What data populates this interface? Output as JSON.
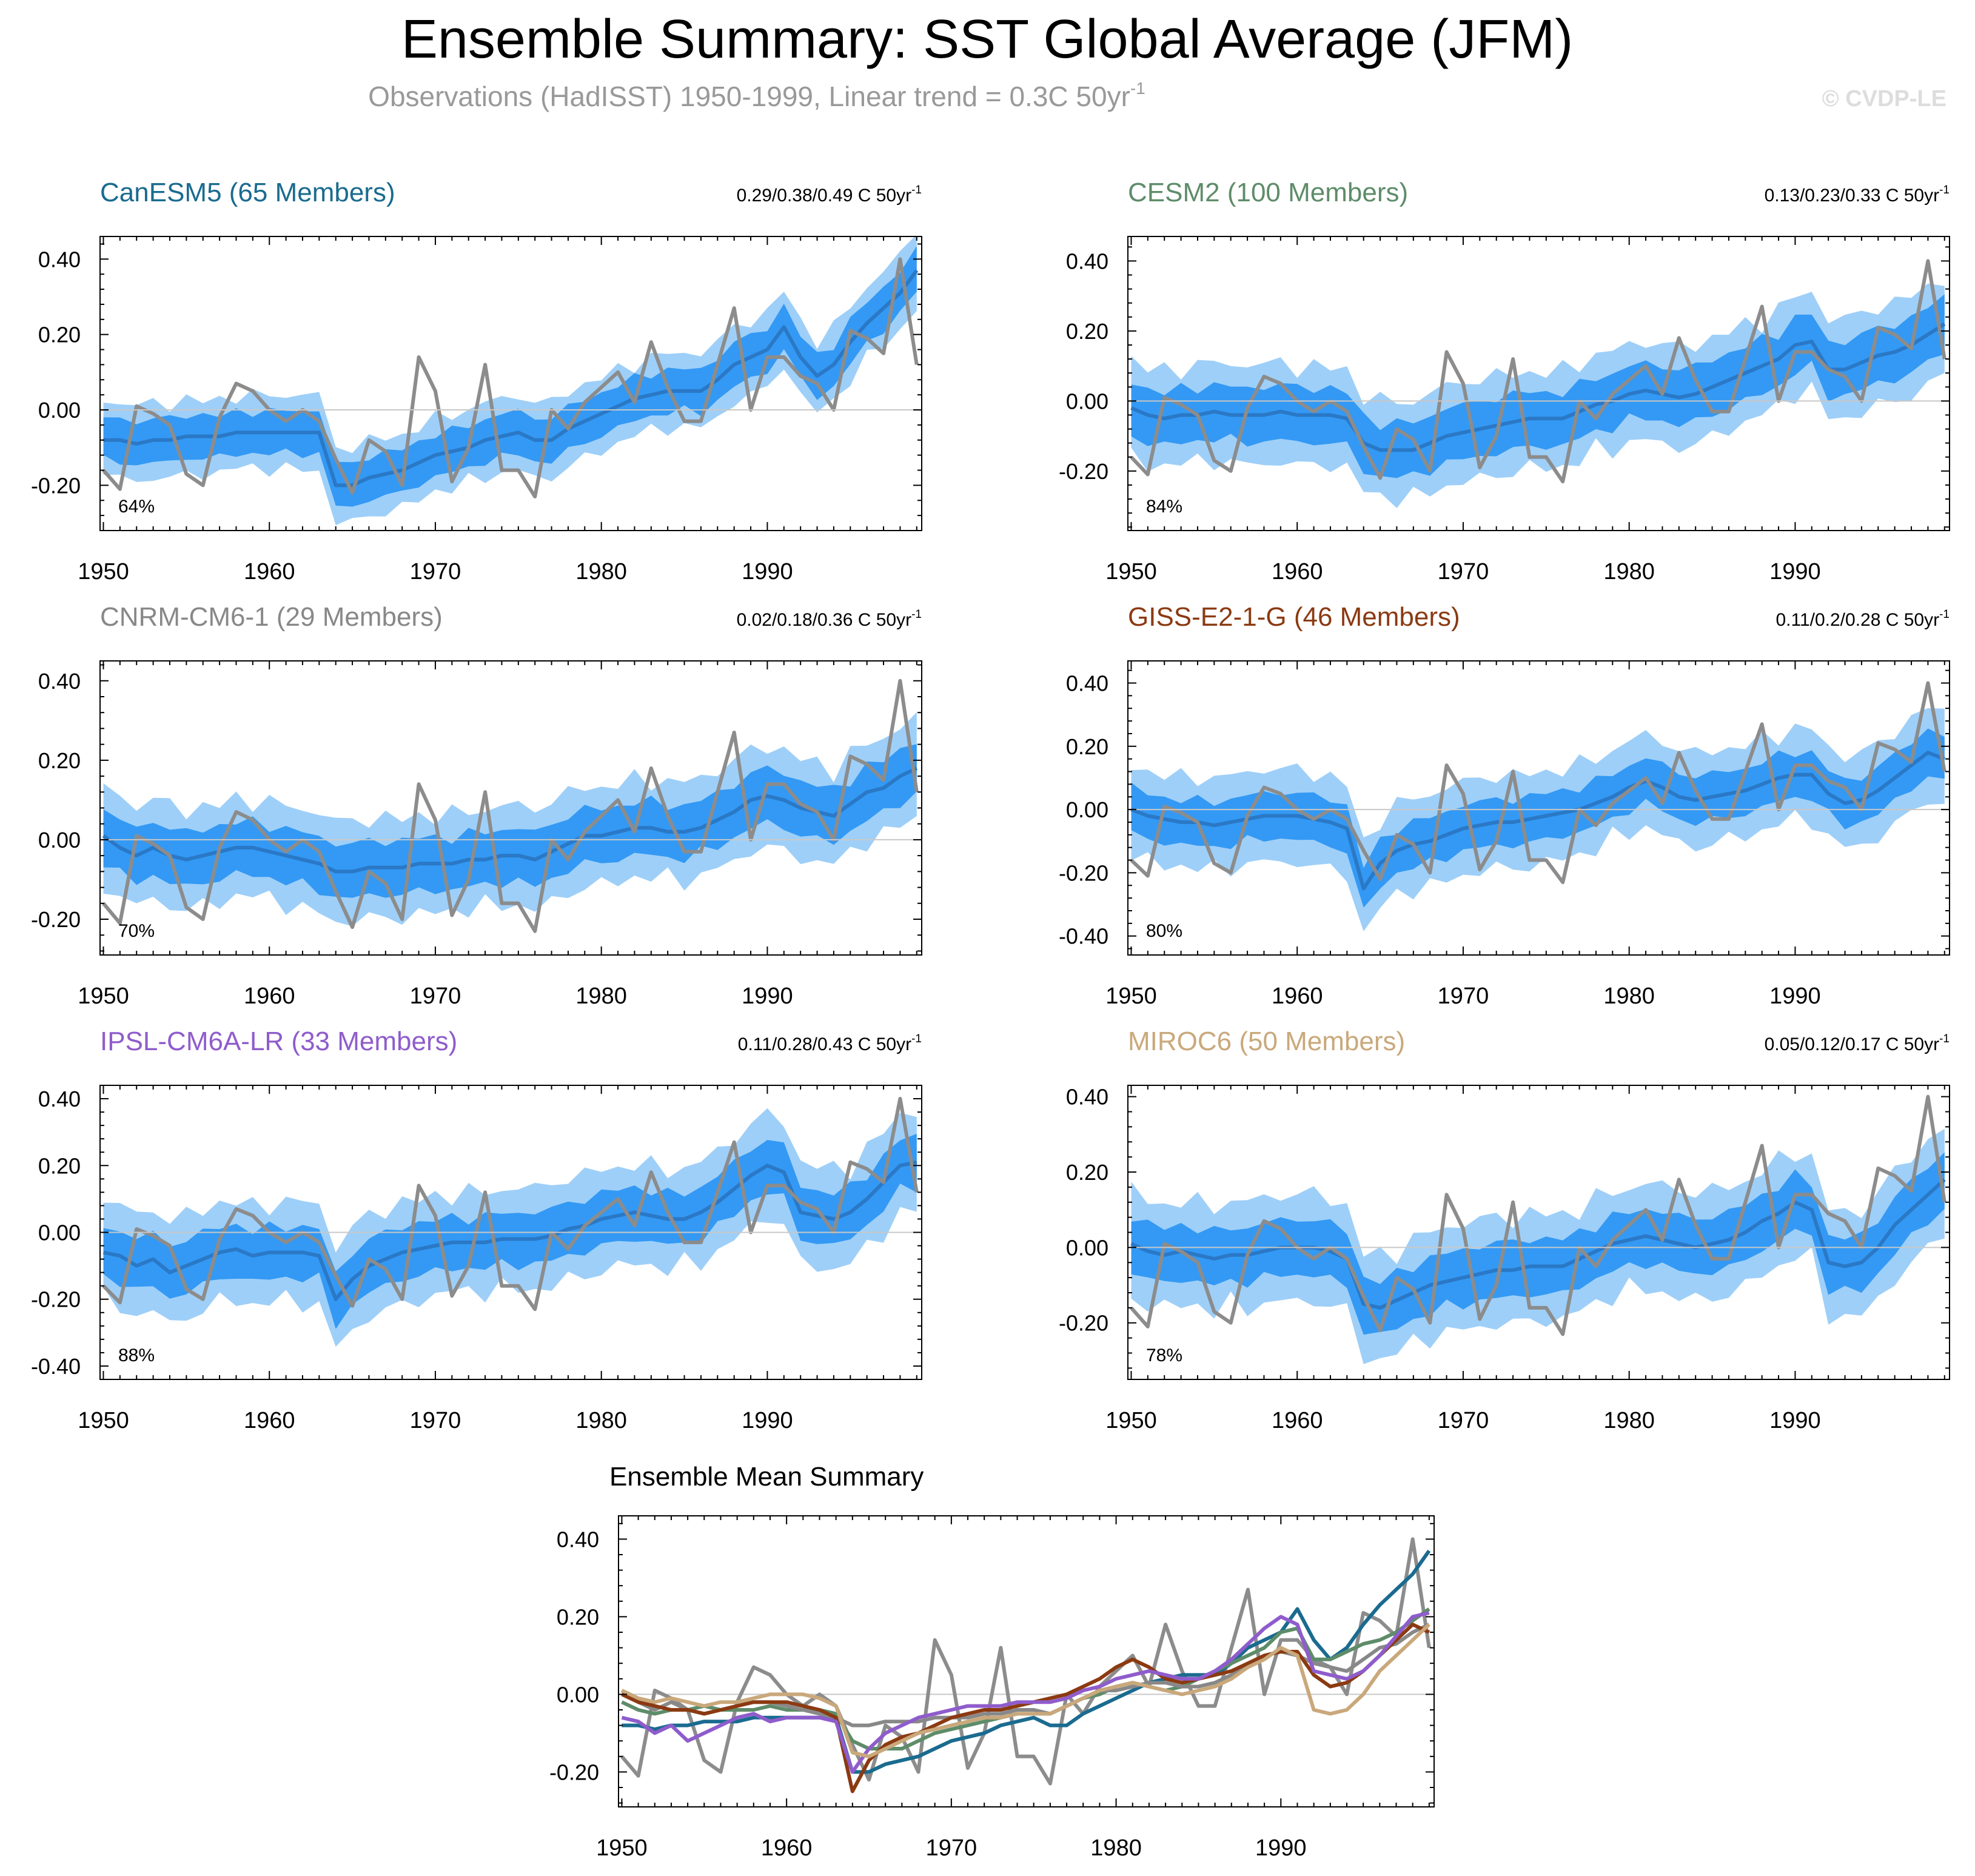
{
  "page": {
    "title": "Ensemble Summary: SST Global Average (JFM)",
    "subtitle_main": "Observations (HadISST) 1950-1999, Linear trend = 0.3C 50yr",
    "subtitle_exp": "-1",
    "watermark": "© CVDP-LE"
  },
  "colors": {
    "band_outer": "#9ecff8",
    "band_inner": "#3399f4",
    "ens_mean": "#2a78c6",
    "obs": "#8c8c8c",
    "zero_line": "#c8c8c8",
    "text_gray": "#999999"
  },
  "chart_data": {
    "type": "line",
    "x": [
      1950,
      1951,
      1952,
      1953,
      1954,
      1955,
      1956,
      1957,
      1958,
      1959,
      1960,
      1961,
      1962,
      1963,
      1964,
      1965,
      1966,
      1967,
      1968,
      1969,
      1970,
      1971,
      1972,
      1973,
      1974,
      1975,
      1976,
      1977,
      1978,
      1979,
      1980,
      1981,
      1982,
      1983,
      1984,
      1985,
      1986,
      1987,
      1988,
      1989,
      1990,
      1991,
      1992,
      1993,
      1994,
      1995,
      1996,
      1997,
      1998,
      1999
    ],
    "x_ticks": [
      1950,
      1960,
      1970,
      1980,
      1990
    ],
    "obs_name": "Observations (HadISST)",
    "obs": [
      -0.16,
      -0.21,
      0.01,
      -0.01,
      -0.04,
      -0.17,
      -0.2,
      -0.02,
      0.07,
      0.05,
      0.0,
      -0.03,
      0.0,
      -0.03,
      -0.13,
      -0.22,
      -0.08,
      -0.11,
      -0.2,
      0.14,
      0.05,
      -0.19,
      -0.1,
      0.12,
      -0.16,
      -0.16,
      -0.23,
      0.0,
      -0.05,
      0.02,
      0.06,
      0.1,
      0.02,
      0.18,
      0.06,
      -0.03,
      -0.03,
      0.12,
      0.27,
      0.0,
      0.14,
      0.14,
      0.09,
      0.07,
      0.0,
      0.21,
      0.19,
      0.15,
      0.4,
      0.12
    ],
    "panels": [
      {
        "model": "CanESM5 (65 Members)",
        "color": "#1a6b8f",
        "trend": "0.29/0.38/0.49 C 50yr",
        "pct": "64%",
        "ylim": [
          -0.32,
          0.46
        ],
        "yticks": [
          -0.2,
          0,
          0.2,
          0.4
        ],
        "mean": [
          -0.08,
          -0.08,
          -0.09,
          -0.08,
          -0.08,
          -0.07,
          -0.07,
          -0.07,
          -0.06,
          -0.06,
          -0.06,
          -0.06,
          -0.06,
          -0.06,
          -0.2,
          -0.2,
          -0.18,
          -0.17,
          -0.16,
          -0.14,
          -0.12,
          -0.11,
          -0.1,
          -0.08,
          -0.07,
          -0.06,
          -0.08,
          -0.08,
          -0.05,
          -0.03,
          -0.01,
          0.01,
          0.03,
          0.04,
          0.05,
          0.05,
          0.05,
          0.08,
          0.12,
          0.14,
          0.16,
          0.22,
          0.14,
          0.09,
          0.12,
          0.18,
          0.23,
          0.27,
          0.31,
          0.37
        ],
        "inner_spread": 0.055,
        "outer_spread": 0.095
      },
      {
        "model": "CESM2 (100 Members)",
        "color": "#5e8c69",
        "trend": "0.13/0.23/0.33 C 50yr",
        "pct": "84%",
        "ylim": [
          -0.37,
          0.47
        ],
        "yticks": [
          -0.2,
          0,
          0.2,
          0.4
        ],
        "mean": [
          -0.02,
          -0.04,
          -0.05,
          -0.04,
          -0.04,
          -0.03,
          -0.04,
          -0.04,
          -0.04,
          -0.03,
          -0.04,
          -0.04,
          -0.04,
          -0.05,
          -0.12,
          -0.14,
          -0.14,
          -0.14,
          -0.12,
          -0.1,
          -0.09,
          -0.08,
          -0.07,
          -0.06,
          -0.05,
          -0.05,
          -0.05,
          -0.03,
          -0.01,
          0.0,
          0.02,
          0.03,
          0.02,
          0.01,
          0.02,
          0.04,
          0.06,
          0.08,
          0.1,
          0.12,
          0.16,
          0.17,
          0.09,
          0.09,
          0.11,
          0.13,
          0.14,
          0.16,
          0.19,
          0.22
        ],
        "inner_spread": 0.075,
        "outer_spread": 0.135
      },
      {
        "model": "CNRM-CM6-1 (29 Members)",
        "color": "#888888",
        "trend": "0.02/0.18/0.36 C 50yr",
        "pct": "70%",
        "ylim": [
          -0.29,
          0.45
        ],
        "yticks": [
          -0.2,
          0,
          0.2,
          0.4
        ],
        "mean": [
          0.01,
          -0.02,
          -0.04,
          -0.02,
          -0.04,
          -0.05,
          -0.04,
          -0.03,
          -0.02,
          -0.02,
          -0.03,
          -0.04,
          -0.05,
          -0.06,
          -0.08,
          -0.08,
          -0.07,
          -0.07,
          -0.07,
          -0.06,
          -0.06,
          -0.06,
          -0.05,
          -0.05,
          -0.04,
          -0.04,
          -0.05,
          -0.03,
          -0.01,
          0.01,
          0.01,
          0.02,
          0.03,
          0.03,
          0.02,
          0.02,
          0.03,
          0.05,
          0.07,
          0.1,
          0.11,
          0.1,
          0.08,
          0.07,
          0.06,
          0.09,
          0.12,
          0.13,
          0.16,
          0.18
        ],
        "inner_spread": 0.065,
        "outer_spread": 0.12
      },
      {
        "model": "GISS-E2-1-G (46 Members)",
        "color": "#8b3a12",
        "trend": "0.11/0.2/0.28 C 50yr",
        "pct": "80%",
        "ylim": [
          -0.46,
          0.47
        ],
        "yticks": [
          -0.4,
          -0.2,
          0,
          0.2,
          0.4
        ],
        "mean": [
          0.0,
          -0.02,
          -0.03,
          -0.04,
          -0.04,
          -0.05,
          -0.04,
          -0.03,
          -0.02,
          -0.02,
          -0.02,
          -0.03,
          -0.04,
          -0.06,
          -0.25,
          -0.17,
          -0.13,
          -0.11,
          -0.1,
          -0.08,
          -0.06,
          -0.05,
          -0.04,
          -0.04,
          -0.03,
          -0.02,
          -0.01,
          0.0,
          0.02,
          0.04,
          0.07,
          0.09,
          0.07,
          0.04,
          0.03,
          0.04,
          0.05,
          0.06,
          0.08,
          0.1,
          0.11,
          0.11,
          0.05,
          0.02,
          0.03,
          0.06,
          0.1,
          0.14,
          0.18,
          0.16
        ],
        "inner_spread": 0.07,
        "outer_spread": 0.14
      },
      {
        "model": "IPSL-CM6A-LR (33 Members)",
        "color": "#8f5ccc",
        "trend": "0.11/0.28/0.43 C 50yr",
        "pct": "88%",
        "ylim": [
          -0.44,
          0.44
        ],
        "yticks": [
          -0.4,
          -0.2,
          0,
          0.2,
          0.4
        ],
        "mean": [
          -0.06,
          -0.07,
          -0.1,
          -0.08,
          -0.12,
          -0.1,
          -0.08,
          -0.06,
          -0.05,
          -0.07,
          -0.06,
          -0.06,
          -0.06,
          -0.07,
          -0.2,
          -0.14,
          -0.1,
          -0.08,
          -0.06,
          -0.05,
          -0.04,
          -0.03,
          -0.03,
          -0.03,
          -0.02,
          -0.02,
          -0.02,
          -0.01,
          0.01,
          0.02,
          0.04,
          0.05,
          0.06,
          0.05,
          0.04,
          0.04,
          0.06,
          0.09,
          0.13,
          0.17,
          0.2,
          0.18,
          0.06,
          0.05,
          0.04,
          0.06,
          0.1,
          0.15,
          0.2,
          0.21
        ],
        "inner_spread": 0.075,
        "outer_spread": 0.145
      },
      {
        "model": "MIROC6 (50 Members)",
        "color": "#c9a87b",
        "trend": "0.05/0.12/0.17 C 50yr",
        "pct": "78%",
        "ylim": [
          -0.35,
          0.43
        ],
        "yticks": [
          -0.2,
          0,
          0.2,
          0.4
        ],
        "mean": [
          0.01,
          -0.01,
          -0.02,
          -0.01,
          -0.02,
          -0.03,
          -0.02,
          -0.02,
          -0.01,
          0.0,
          0.0,
          0.0,
          -0.01,
          -0.03,
          -0.15,
          -0.16,
          -0.14,
          -0.12,
          -0.1,
          -0.09,
          -0.08,
          -0.07,
          -0.06,
          -0.06,
          -0.05,
          -0.05,
          -0.05,
          -0.03,
          -0.01,
          0.01,
          0.02,
          0.03,
          0.02,
          0.01,
          0.0,
          0.01,
          0.02,
          0.04,
          0.07,
          0.09,
          0.12,
          0.1,
          -0.04,
          -0.05,
          -0.04,
          0.0,
          0.06,
          0.1,
          0.14,
          0.18
        ],
        "inner_spread": 0.07,
        "outer_spread": 0.135
      }
    ],
    "summary": {
      "title": "Ensemble Mean Summary",
      "ylim": [
        -0.29,
        0.46
      ],
      "yticks": [
        -0.2,
        0,
        0.2,
        0.4
      ]
    }
  }
}
